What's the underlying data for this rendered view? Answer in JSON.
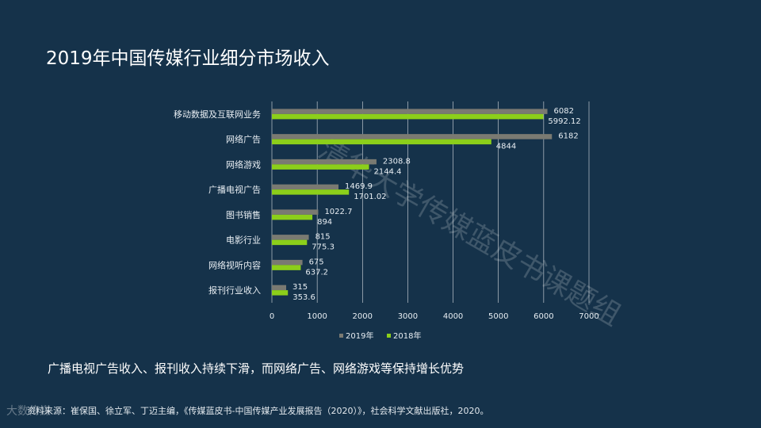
{
  "slide": {
    "title": "2019年中国传媒行业细分市场收入",
    "watermark": "清华大学传媒蓝皮书课题组",
    "conclusion": "广播电视广告收入、报刊收入持续下滑，而网络广告、网络游戏等保持增长优势",
    "source": "资料来源：崔保国、徐立军、丁迈主编，《传媒蓝皮书-中国传媒产业发展报告（2020）》，社会科学文献出版社，2020。",
    "logo": "大数传媒"
  },
  "chart_data": {
    "type": "bar",
    "orientation": "horizontal",
    "categories": [
      "移动数据及互联网业务",
      "网络广告",
      "网络游戏",
      "广播电视广告",
      "图书销售",
      "电影行业",
      "网络视听内容",
      "报刊行业收入"
    ],
    "series": [
      {
        "name": "2019年",
        "color": "#7a7a72",
        "values": [
          6082,
          6182,
          2308.8,
          1469.9,
          1022.7,
          815,
          675,
          315
        ],
        "labels": [
          "6082",
          "6182",
          "2308.8",
          "1469.9",
          "1022.7",
          "815",
          "675",
          "315"
        ]
      },
      {
        "name": "2018年",
        "color": "#8ccf1a",
        "values": [
          5992.12,
          4844,
          2144.4,
          1701.02,
          894,
          775.3,
          637.2,
          353.6
        ],
        "labels": [
          "5992.12",
          "4844",
          "2144.4",
          "1701.02",
          "894",
          "775.3",
          "637.2",
          "353.6"
        ]
      }
    ],
    "xlim": [
      0,
      7000
    ],
    "xticks": [
      "0",
      "1000",
      "2000",
      "3000",
      "4000",
      "5000",
      "6000",
      "7000"
    ],
    "grid": true,
    "legend_position": "bottom"
  }
}
